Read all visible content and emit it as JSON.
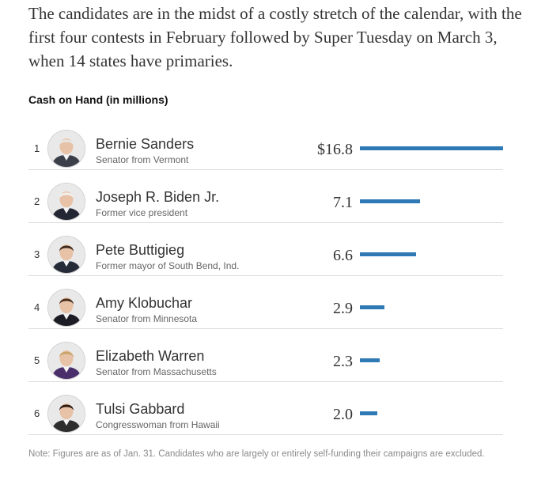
{
  "intro_text": "The candidates are in the midst of a costly stretch of the calendar, with the first four contests in February followed by Super Tuesday on March 3, when 14 states have primaries.",
  "chart_data": {
    "type": "bar",
    "title": "Cash on Hand (in millions)",
    "categories": [
      "Bernie Sanders",
      "Joseph R. Biden Jr.",
      "Pete Buttigieg",
      "Amy Klobuchar",
      "Elizabeth Warren",
      "Tulsi Gabbard"
    ],
    "values": [
      16.8,
      7.1,
      6.6,
      2.9,
      2.3,
      2.0
    ],
    "value_labels": [
      "$16.8",
      "7.1",
      "6.6",
      "2.9",
      "2.3",
      "2.0"
    ],
    "bar_color": "#2f7ab5",
    "xlim": [
      0,
      16.8
    ],
    "rows": [
      {
        "rank": "1",
        "name": "Bernie Sanders",
        "title": "Senator from Vermont",
        "avatar_icon": "bernie-sanders-portrait",
        "hair": "#e6e6e6",
        "jacket": "#3b3f4a"
      },
      {
        "rank": "2",
        "name": "Joseph R. Biden Jr.",
        "title": "Former vice president",
        "avatar_icon": "joseph-biden-portrait",
        "hair": "#f1f1f1",
        "jacket": "#232733"
      },
      {
        "rank": "3",
        "name": "Pete Buttigieg",
        "title": "Former mayor of South Bend, Ind.",
        "avatar_icon": "pete-buttigieg-portrait",
        "hair": "#3b2a1e",
        "jacket": "#262b38"
      },
      {
        "rank": "4",
        "name": "Amy Klobuchar",
        "title": "Senator from Minnesota",
        "avatar_icon": "amy-klobuchar-portrait",
        "hair": "#4a2f1f",
        "jacket": "#1c1c24"
      },
      {
        "rank": "5",
        "name": "Elizabeth Warren",
        "title": "Senator from Massachusetts",
        "avatar_icon": "elizabeth-warren-portrait",
        "hair": "#c9a46a",
        "jacket": "#4b2f6b"
      },
      {
        "rank": "6",
        "name": "Tulsi Gabbard",
        "title": "Congresswoman from Hawaii",
        "avatar_icon": "tulsi-gabbard-portrait",
        "hair": "#2b1a12",
        "jacket": "#2d2d2d"
      }
    ]
  },
  "note": "Note: Figures are as of Jan. 31. Candidates who are largely or entirely self-funding their campaigns are excluded."
}
